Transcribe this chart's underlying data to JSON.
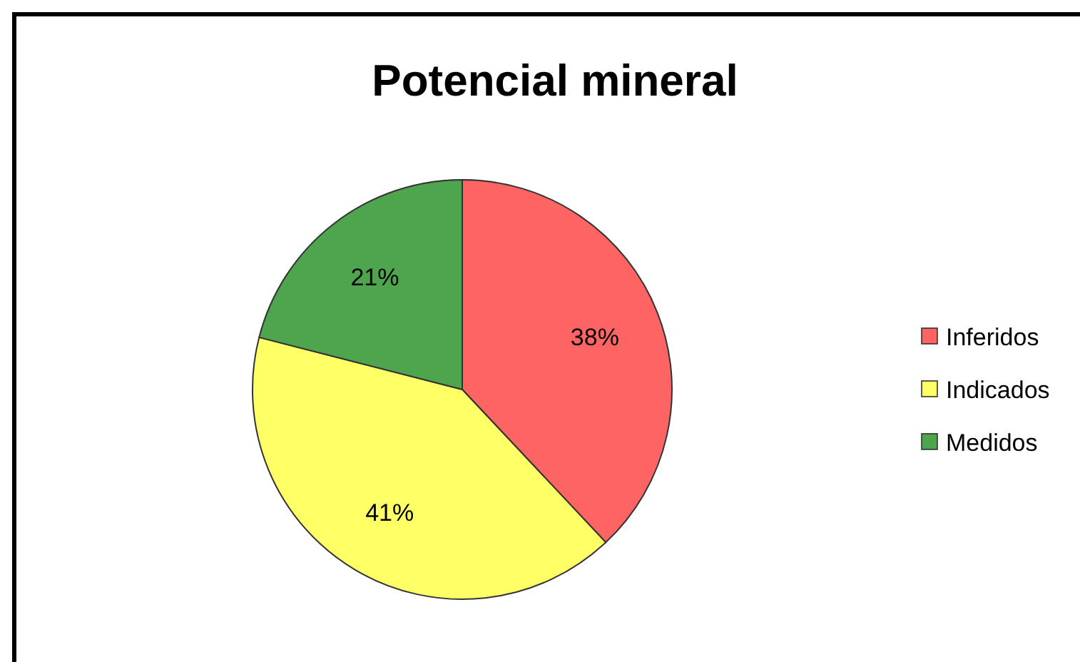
{
  "chart_data": {
    "type": "pie",
    "title": "Potencial mineral",
    "categories": [
      "Inferidos",
      "Indicados",
      "Medidos"
    ],
    "values": [
      38,
      41,
      21
    ],
    "colors": [
      "#ff6464",
      "#ffff66",
      "#4ea54e"
    ],
    "value_labels": [
      "38%",
      "41%",
      "21%"
    ],
    "legend": "right"
  }
}
